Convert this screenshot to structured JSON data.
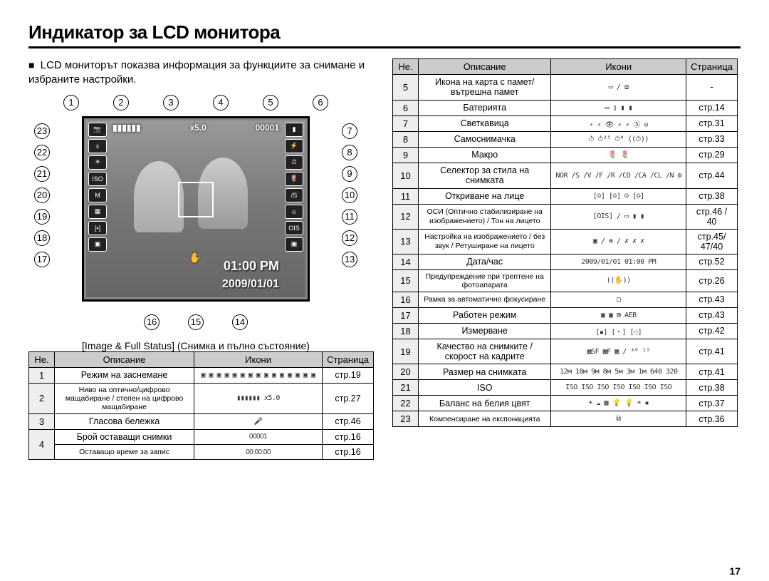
{
  "title": "Индикатор за LCD монитора",
  "intro": "LCD мониторът показва информация за функциите за снимане и избраните настройки.",
  "diagram": {
    "top_callouts": [
      "1",
      "2",
      "3",
      "4",
      "5",
      "6"
    ],
    "left_callouts": [
      "23",
      "22",
      "21",
      "20",
      "19",
      "18",
      "17"
    ],
    "right_callouts": [
      "7",
      "8",
      "9",
      "10",
      "11",
      "12",
      "13"
    ],
    "bottom_callouts": [
      "16",
      "15",
      "14"
    ],
    "screen_zoom": "x5.0",
    "screen_counter": "00001",
    "screen_time": "01:00 PM",
    "screen_date": "2009/01/01",
    "caption": "[Image & Full Status] (Снимка и пълно състояние)"
  },
  "table_headers": {
    "num": "Не.",
    "desc": "Описание",
    "icons": "Икони",
    "page": "Страница"
  },
  "left_table": [
    {
      "num": "1",
      "desc": "Режим на заснемане",
      "icons": "▣ ▣ ▣ ▣ ▣ ▣ ▣ ▣\n▣ ▣ ▣ ▣ ▣ ▣ ▣",
      "page": "стр.19"
    },
    {
      "num": "2",
      "desc": "Ниво на оптично/цифрово мащабиране / степен на цифрово мащабиране",
      "small": true,
      "icons": "▮▮▮▮▮▮ x5.0",
      "page": "стр.27"
    },
    {
      "num": "3",
      "desc": "Гласова бележка",
      "icons": "🎤",
      "page": "стр.46"
    },
    {
      "num": "4",
      "desc": "Брой оставащи снимки",
      "icons": "00001",
      "page": "стр.16",
      "rowspan": 2
    },
    {
      "num": "",
      "desc": "Оставащо време за запис",
      "small": true,
      "icons": "00:00:00",
      "page": "стр.16",
      "merge": true
    }
  ],
  "right_table": [
    {
      "num": "5",
      "desc": "Икона на карта с памет/вътрешна памет",
      "icons": "▭ / ⧈",
      "page": "-"
    },
    {
      "num": "6",
      "desc": "Батерията",
      "icons": "▭ ▯ ▮ ▮",
      "page": "стр.14"
    },
    {
      "num": "7",
      "desc": "Светкавица",
      "icons": "⚡ ⚡ 👁 ⚡ ⚡ Ⓢ ⊘",
      "page": "стр.31"
    },
    {
      "num": "8",
      "desc": "Самоснимачка",
      "icons": "⏱ ⏱²⁵ ⏱⁰ ((⏱))",
      "page": "стр.33"
    },
    {
      "num": "9",
      "desc": "Макро",
      "icons": "🌷  🌷",
      "page": "стр.29"
    },
    {
      "num": "10",
      "desc": "Селектор за стила на снимката",
      "icons": "NOR /S /V /F /R /CO /CA /CL /N ⚙",
      "page": "стр.44"
    },
    {
      "num": "11",
      "desc": "Откриване на лице",
      "icons": "[☺] [☺] ☺ [☺]",
      "page": "стр.38"
    },
    {
      "num": "12",
      "desc": "ОСИ (Оптично стабилизиране на изображението) / Тон на лицето",
      "small": true,
      "icons": "[OIS] / ▭  ▮  ▮",
      "page": "стр.46 / 40"
    },
    {
      "num": "13",
      "desc": "Настройка на изображението / без звук / Ретуширане на лицето",
      "small": true,
      "icons": "▣ / ⊕ / ✗ ✗ ✗",
      "page": "стр.45/ 47/40"
    },
    {
      "num": "14",
      "desc": "Дата/час",
      "icons": "2009/01/01  01:00 PM",
      "page": "стр.52"
    },
    {
      "num": "15",
      "desc": "Предупреждение при трептене на фотоапарата",
      "small": true,
      "icons": "((✋))",
      "page": "стр.26"
    },
    {
      "num": "16",
      "desc": "Рамка за автоматично фокусиране",
      "small": true,
      "icons": "▢",
      "page": "стр.43"
    },
    {
      "num": "17",
      "desc": "Работен режим",
      "icons": "▣  ▣  ⊞  AEB",
      "page": "стр.43"
    },
    {
      "num": "18",
      "desc": "Измерване",
      "icons": "[▪]  [・]  [◌]",
      "page": "стр.42"
    },
    {
      "num": "19",
      "desc": "Качество на снимките / скорост на кадрите",
      "icons": "▦SF ▦F ▦ / ³⁰ ¹⁵",
      "page": "стр.41"
    },
    {
      "num": "20",
      "desc": "Размер на снимката",
      "icons": "12м 10м 9м 8м 5м 3м 1м 640 320",
      "page": "стр.41"
    },
    {
      "num": "21",
      "desc": "ISO",
      "icons": "ISO ISO ISO ISO ISO ISO ISO",
      "page": "стр.38"
    },
    {
      "num": "22",
      "desc": "Баланс на белия цвят",
      "icons": "☀ ☁ ▦ 💡 💡 ☀ ▪",
      "page": "стр.37"
    },
    {
      "num": "23",
      "desc": "Компенсиране на експонацията",
      "small": true,
      "icons": "⧉",
      "page": "стр.36"
    }
  ],
  "page_number": "17"
}
